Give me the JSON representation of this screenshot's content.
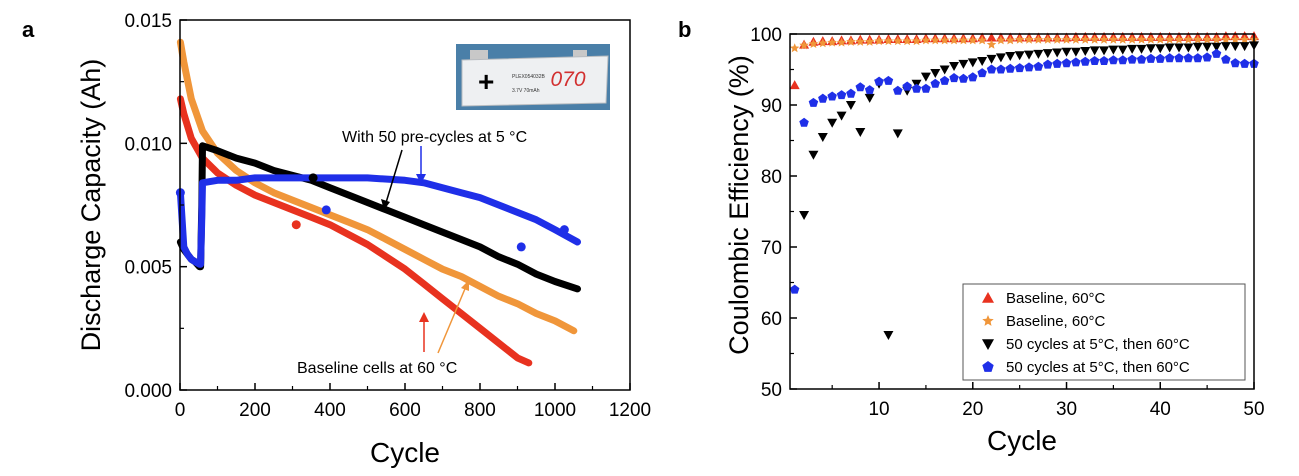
{
  "panel_a": {
    "label": "a",
    "inset_cell": {
      "sign": "+",
      "number": "070",
      "print_line1": "PLEX054032B",
      "print_line2": "3.7V  70mAh"
    },
    "annotation_precycle": "With 50 pre-cycles at 5 °C",
    "annotation_baseline": "Baseline cells at 60 °C",
    "colors": {
      "red": "#e8321f",
      "orange": "#f0963a",
      "black": "#000000",
      "blue": "#1f2fe8"
    }
  },
  "panel_b": {
    "label": "b",
    "colors": {
      "red": "#e8321f",
      "orange": "#f0963a",
      "black": "#000000",
      "blue": "#1f2fe8"
    }
  },
  "chart_data": [
    {
      "type": "scatter",
      "title": "",
      "xlabel": "Cycle",
      "ylabel": "Discharge Capacity (Ah)",
      "xlim": [
        0,
        1200
      ],
      "ylim": [
        0,
        0.015
      ],
      "xticks": [
        "0",
        "200",
        "400",
        "600",
        "800",
        "1000",
        "1200"
      ],
      "yticks": [
        "0.000",
        "0.005",
        "0.010",
        "0.015"
      ],
      "grid": false,
      "series": [
        {
          "name": "Baseline cells at 60 °C (red)",
          "color": "#e8321f",
          "x": [
            1,
            10,
            30,
            60,
            100,
            150,
            200,
            250,
            300,
            350,
            400,
            450,
            500,
            550,
            600,
            650,
            700,
            750,
            800,
            850,
            900,
            930
          ],
          "y": [
            0.0118,
            0.0112,
            0.0102,
            0.0094,
            0.0088,
            0.0083,
            0.0079,
            0.0076,
            0.0073,
            0.007,
            0.0067,
            0.0063,
            0.0059,
            0.0054,
            0.0049,
            0.0043,
            0.0037,
            0.0031,
            0.0025,
            0.0019,
            0.0013,
            0.0011
          ]
        },
        {
          "name": "Baseline cells at 60 °C (orange)",
          "color": "#f0963a",
          "x": [
            1,
            10,
            30,
            60,
            100,
            150,
            200,
            250,
            300,
            350,
            400,
            450,
            500,
            550,
            600,
            650,
            700,
            750,
            800,
            850,
            900,
            950,
            1000,
            1050
          ],
          "y": [
            0.0141,
            0.0133,
            0.0118,
            0.0105,
            0.0096,
            0.0089,
            0.0084,
            0.008,
            0.0077,
            0.0074,
            0.0071,
            0.0068,
            0.0065,
            0.0061,
            0.0057,
            0.0053,
            0.0049,
            0.0046,
            0.0042,
            0.0038,
            0.0035,
            0.0031,
            0.0028,
            0.0024
          ]
        },
        {
          "name": "With 50 pre-cycles at 5 °C (black)",
          "color": "#000000",
          "x": [
            1,
            10,
            20,
            30,
            40,
            52,
            55,
            58,
            60,
            100,
            150,
            200,
            250,
            300,
            350,
            400,
            450,
            500,
            550,
            600,
            650,
            700,
            750,
            800,
            850,
            900,
            950,
            1000,
            1060
          ],
          "y": [
            0.006,
            0.0057,
            0.0055,
            0.0053,
            0.0052,
            0.005,
            0.005,
            0.0075,
            0.0099,
            0.0097,
            0.0094,
            0.0092,
            0.0089,
            0.0087,
            0.0085,
            0.0082,
            0.0079,
            0.0076,
            0.0073,
            0.007,
            0.0067,
            0.0064,
            0.0061,
            0.0058,
            0.0054,
            0.0051,
            0.0047,
            0.0044,
            0.0041
          ]
        },
        {
          "name": "With 50 pre-cycles at 5 °C (blue)",
          "color": "#1f2fe8",
          "x": [
            1,
            10,
            20,
            30,
            40,
            52,
            55,
            58,
            60,
            100,
            150,
            200,
            300,
            400,
            500,
            600,
            650,
            700,
            750,
            800,
            850,
            900,
            950,
            1000,
            1060
          ],
          "y": [
            0.008,
            0.0058,
            0.0055,
            0.0053,
            0.0052,
            0.0051,
            0.0051,
            0.007,
            0.0084,
            0.0085,
            0.0085,
            0.0086,
            0.0086,
            0.0086,
            0.0086,
            0.0085,
            0.0084,
            0.0082,
            0.008,
            0.0078,
            0.0075,
            0.0072,
            0.0069,
            0.0065,
            0.006
          ]
        }
      ],
      "outlier_markers": [
        {
          "series": "blue",
          "x": 1,
          "y": 0.008
        },
        {
          "series": "blue",
          "x": 390,
          "y": 0.0073
        },
        {
          "series": "blue",
          "x": 910,
          "y": 0.0058
        },
        {
          "series": "blue",
          "x": 1025,
          "y": 0.0065
        },
        {
          "series": "red",
          "x": 310,
          "y": 0.0067
        },
        {
          "series": "black",
          "x": 355,
          "y": 0.0086
        }
      ]
    },
    {
      "type": "scatter",
      "title": "",
      "xlabel": "Cycle",
      "ylabel": "Coulombic Efficiency (%)",
      "xlim": [
        0.5,
        50
      ],
      "ylim": [
        50,
        100
      ],
      "xticks": [
        "10",
        "20",
        "30",
        "40",
        "50"
      ],
      "xtick_values": [
        10,
        20,
        30,
        40,
        50
      ],
      "yticks": [
        "50",
        "60",
        "70",
        "80",
        "90",
        "100"
      ],
      "grid": false,
      "legend_position": "bottom-right",
      "series": [
        {
          "name": "Baseline, 60°C",
          "color": "#e8321f",
          "marker": "triangle-up",
          "x": [
            1,
            2,
            3,
            4,
            5,
            6,
            7,
            8,
            9,
            10,
            11,
            12,
            13,
            14,
            15,
            16,
            17,
            18,
            19,
            20,
            21,
            22,
            23,
            24,
            25,
            26,
            27,
            28,
            29,
            30,
            31,
            32,
            33,
            34,
            35,
            36,
            37,
            38,
            39,
            40,
            41,
            42,
            43,
            44,
            45,
            46,
            47,
            48,
            49,
            50
          ],
          "y": [
            92.8,
            98.5,
            98.9,
            99.0,
            99.0,
            99.1,
            99.1,
            99.2,
            99.2,
            99.2,
            99.3,
            99.3,
            99.3,
            99.3,
            99.4,
            99.4,
            99.4,
            99.4,
            99.4,
            99.4,
            99.5,
            99.5,
            99.5,
            99.5,
            99.5,
            99.5,
            99.5,
            99.5,
            99.5,
            99.5,
            99.6,
            99.6,
            99.6,
            99.6,
            99.6,
            99.6,
            99.6,
            99.6,
            99.6,
            99.6,
            99.6,
            99.6,
            99.6,
            99.6,
            99.6,
            99.6,
            99.7,
            99.7,
            99.7,
            99.7
          ]
        },
        {
          "name": "Baseline, 60°C",
          "color": "#f0963a",
          "marker": "star",
          "x": [
            1,
            2,
            3,
            4,
            5,
            6,
            7,
            8,
            9,
            10,
            11,
            12,
            13,
            14,
            15,
            16,
            17,
            18,
            19,
            20,
            21,
            22,
            23,
            24,
            25,
            26,
            27,
            28,
            29,
            30,
            31,
            32,
            33,
            34,
            35,
            36,
            37,
            38,
            39,
            40,
            41,
            42,
            43,
            44,
            45,
            46,
            47,
            48,
            49,
            50
          ],
          "y": [
            98.0,
            98.4,
            98.6,
            98.7,
            98.8,
            98.8,
            98.9,
            98.9,
            98.9,
            99.0,
            99.0,
            99.0,
            99.0,
            99.0,
            99.1,
            99.1,
            99.1,
            99.1,
            99.1,
            99.1,
            99.1,
            98.5,
            99.1,
            99.1,
            99.2,
            99.2,
            99.2,
            99.2,
            99.2,
            99.2,
            99.2,
            99.2,
            99.2,
            99.2,
            99.2,
            99.2,
            99.2,
            99.2,
            99.2,
            99.2,
            99.2,
            99.2,
            99.2,
            99.2,
            99.2,
            99.2,
            99.2,
            99.2,
            99.2,
            99.2
          ]
        },
        {
          "name": "50 cycles at 5°C, then 60°C",
          "color": "#000000",
          "marker": "triangle-down",
          "x": [
            2,
            3,
            4,
            5,
            6,
            7,
            8,
            9,
            10,
            11,
            12,
            13,
            14,
            15,
            16,
            17,
            18,
            19,
            20,
            21,
            22,
            23,
            24,
            25,
            26,
            27,
            28,
            29,
            30,
            31,
            32,
            33,
            34,
            35,
            36,
            37,
            38,
            39,
            40,
            41,
            42,
            43,
            44,
            45,
            46,
            47,
            48,
            49,
            50
          ],
          "y": [
            74.5,
            83.0,
            85.5,
            87.5,
            88.5,
            90.0,
            86.2,
            91.0,
            93.0,
            57.6,
            86.0,
            92.0,
            93.0,
            94.0,
            94.5,
            95.0,
            95.5,
            95.8,
            96.0,
            96.2,
            96.5,
            96.7,
            96.9,
            97.0,
            97.1,
            97.2,
            97.3,
            97.4,
            97.5,
            97.5,
            97.6,
            97.7,
            97.7,
            97.8,
            97.8,
            97.9,
            97.9,
            98.0,
            98.0,
            98.1,
            98.1,
            98.1,
            98.2,
            98.2,
            98.2,
            98.3,
            98.3,
            98.3,
            98.4
          ]
        },
        {
          "name": "50 cycles at 5°C, then 60°C",
          "color": "#1f2fe8",
          "marker": "pentagon",
          "x": [
            1,
            2,
            3,
            4,
            5,
            6,
            7,
            8,
            9,
            10,
            11,
            12,
            13,
            14,
            15,
            16,
            17,
            18,
            19,
            20,
            21,
            22,
            23,
            24,
            25,
            26,
            27,
            28,
            29,
            30,
            31,
            32,
            33,
            34,
            35,
            36,
            37,
            38,
            39,
            40,
            41,
            42,
            43,
            44,
            45,
            46,
            47,
            48,
            49,
            50
          ],
          "y": [
            64.0,
            87.5,
            90.3,
            90.9,
            91.2,
            91.4,
            91.6,
            92.5,
            92.1,
            93.3,
            93.4,
            92.0,
            92.6,
            92.3,
            92.3,
            93.0,
            93.4,
            93.8,
            93.7,
            93.9,
            94.5,
            95.0,
            95.0,
            95.1,
            95.2,
            95.3,
            95.4,
            95.7,
            95.8,
            95.9,
            96.0,
            96.1,
            96.2,
            96.2,
            96.3,
            96.3,
            96.4,
            96.4,
            96.5,
            96.5,
            96.6,
            96.6,
            96.6,
            96.6,
            96.7,
            97.2,
            96.4,
            95.9,
            95.8,
            95.8
          ]
        }
      ]
    }
  ]
}
